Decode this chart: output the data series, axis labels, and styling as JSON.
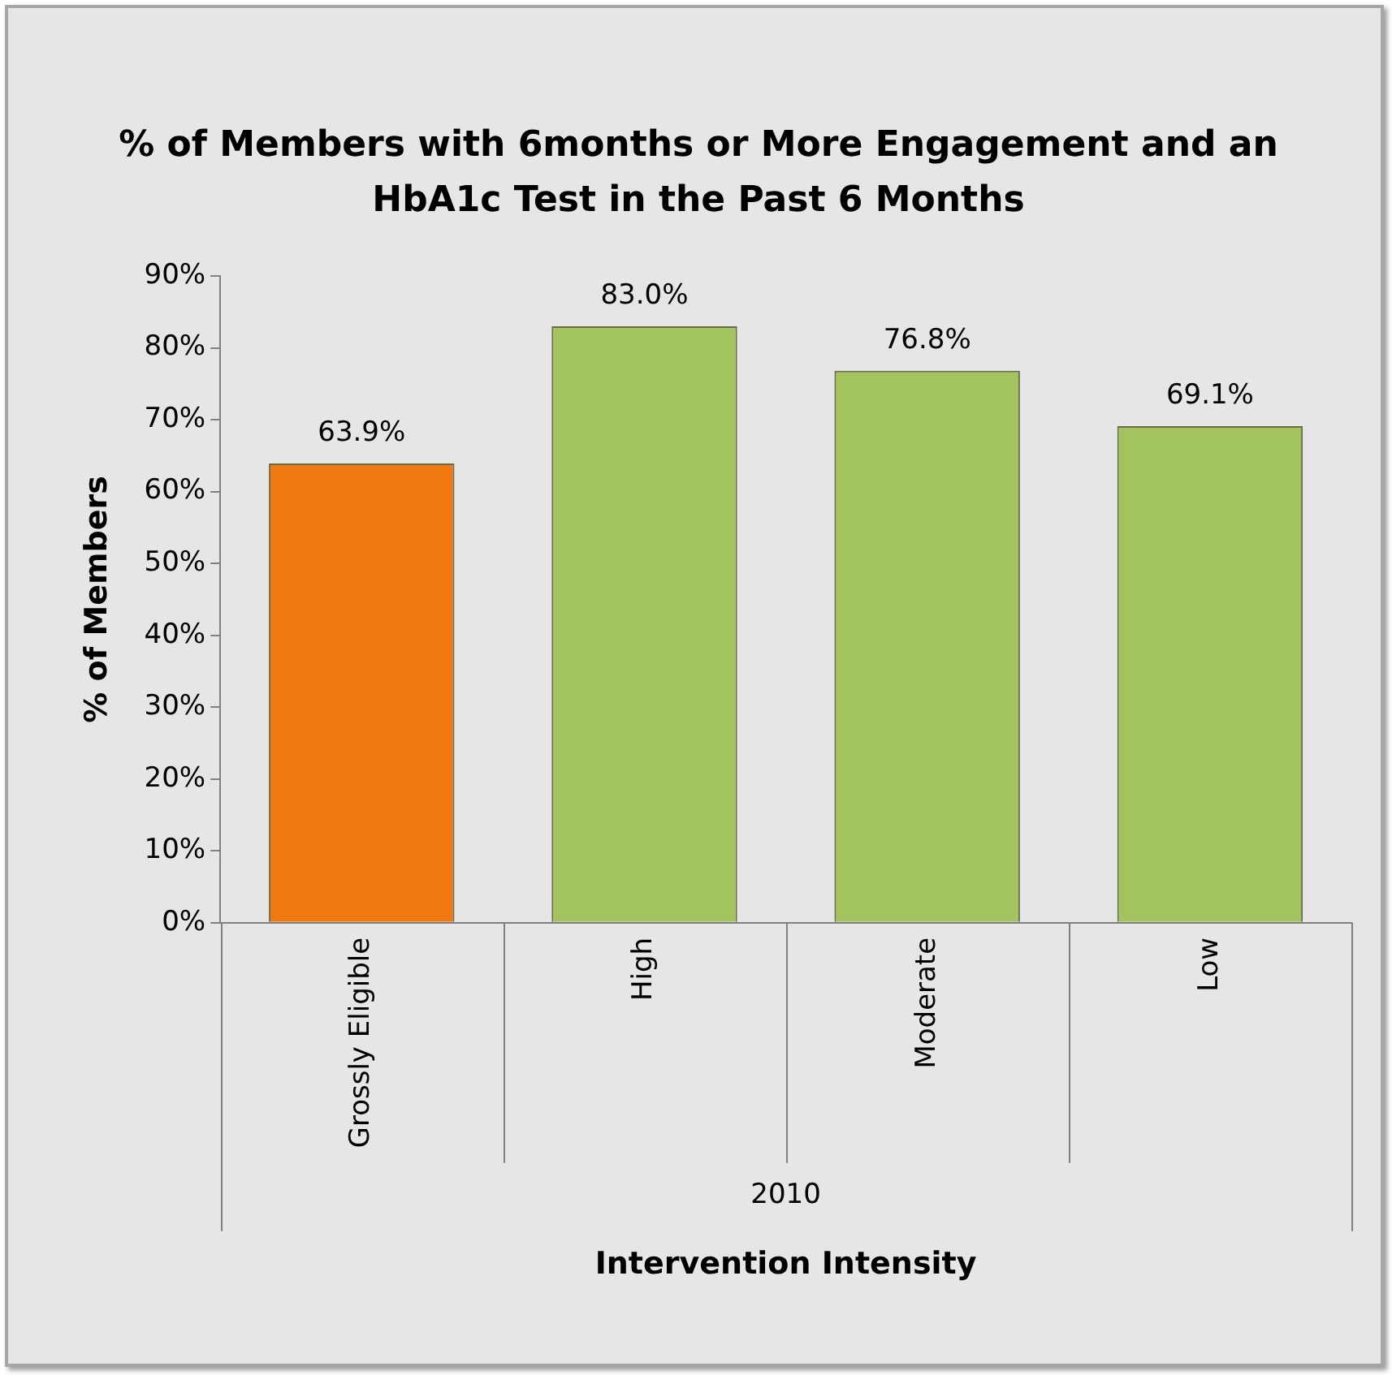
{
  "chart_data": {
    "type": "bar",
    "title": "% of Members with 6months or More Engagement and an HbA1c Test in the Past 6 Months",
    "xlabel": "Intervention Intensity",
    "ylabel": "% of Members",
    "categories": [
      "Grossly Eligible",
      "High",
      "Moderate",
      "Low"
    ],
    "values": [
      63.9,
      83.0,
      76.8,
      69.1
    ],
    "colors": [
      "#f07810",
      "#a2c35e",
      "#a2c35e",
      "#a2c35e"
    ],
    "value_labels": [
      "63.9%",
      "83.0%",
      "76.8%",
      "69.1%"
    ],
    "annotations": [
      "2010"
    ],
    "ylim": [
      0,
      90
    ],
    "yticks": [
      {
        "value": 0,
        "label": "0%"
      },
      {
        "value": 10,
        "label": "10%"
      },
      {
        "value": 20,
        "label": "20%"
      },
      {
        "value": 30,
        "label": "30%"
      },
      {
        "value": 40,
        "label": "40%"
      },
      {
        "value": 50,
        "label": "50%"
      },
      {
        "value": 60,
        "label": "60%"
      },
      {
        "value": 70,
        "label": "70%"
      },
      {
        "value": 80,
        "label": "80%"
      },
      {
        "value": 90,
        "label": "90%"
      }
    ],
    "grid": false,
    "legend": false
  }
}
